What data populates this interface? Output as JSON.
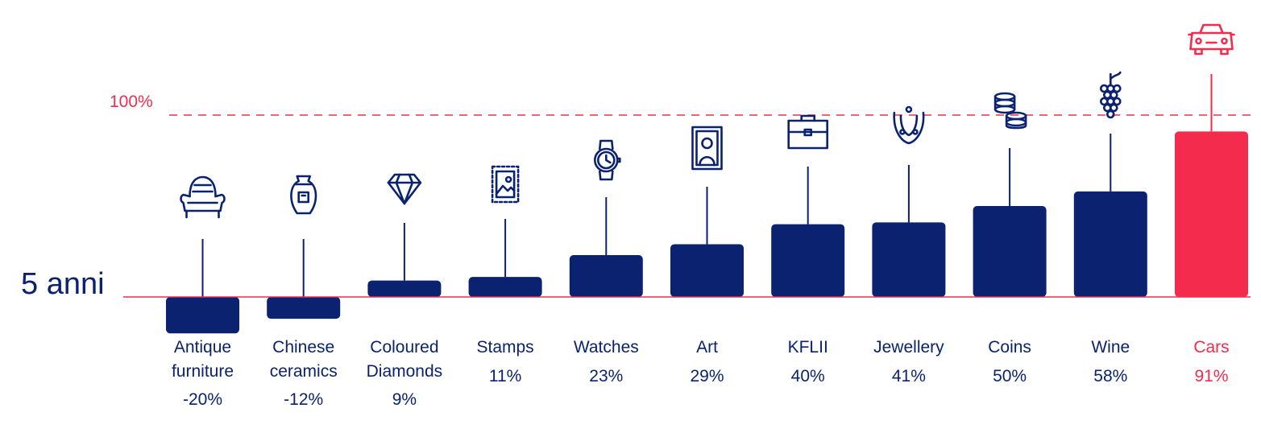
{
  "period_label": "5 anni",
  "reference_label": "100%",
  "colors": {
    "bar": "#0a2270",
    "highlight": "#f52b4d",
    "baseline": "#ef2d4f",
    "text": "#0a2270"
  },
  "chart_data": {
    "type": "bar",
    "title": "",
    "xlabel": "",
    "ylabel": "",
    "categories": [
      "Antique furniture",
      "Chinese ceramics",
      "Coloured Diamonds",
      "Stamps",
      "Watches",
      "Art",
      "KFLII",
      "Jewellery",
      "Coins",
      "Wine",
      "Cars"
    ],
    "value_labels": [
      "-20%",
      "-12%",
      "9%",
      "11%",
      "23%",
      "29%",
      "40%",
      "41%",
      "50%",
      "58%",
      "91%"
    ],
    "values": [
      -20,
      -12,
      9,
      11,
      23,
      29,
      40,
      41,
      50,
      58,
      91
    ],
    "reference_line": 100,
    "highlight_index": 10,
    "icons": [
      "armchair-icon",
      "vase-icon",
      "diamond-icon",
      "stamp-icon",
      "wristwatch-icon",
      "framed-portrait-icon",
      "briefcase-icon",
      "necklace-icon",
      "coins-icon",
      "grapes-icon",
      "car-icon"
    ],
    "ylim": [
      -20,
      100
    ],
    "grid": false,
    "legend": "none"
  }
}
